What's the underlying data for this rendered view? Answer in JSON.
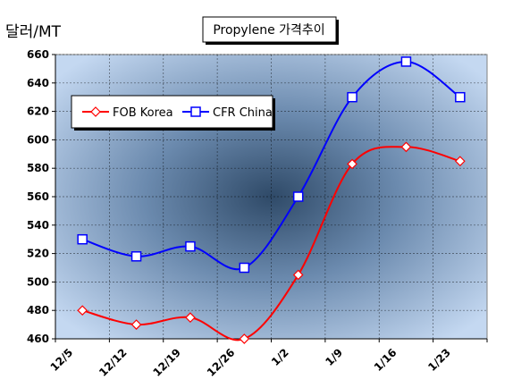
{
  "chart_data": {
    "type": "line",
    "title": "Propylene 가격추이",
    "ylabel": "달러/MT",
    "xlabel": "",
    "categories": [
      "12/5",
      "12/12",
      "12/19",
      "12/26",
      "1/2",
      "1/9",
      "1/16",
      "1/23"
    ],
    "ylim": [
      460,
      660
    ],
    "yticks": [
      460,
      480,
      500,
      520,
      540,
      560,
      580,
      600,
      620,
      640,
      660
    ],
    "grid": true,
    "legend_position": "top-left",
    "series": [
      {
        "name": "FOB Korea",
        "color": "#ff0000",
        "marker": "diamond",
        "values": [
          480,
          470,
          475,
          460,
          505,
          583,
          595,
          585
        ]
      },
      {
        "name": "CFR China",
        "color": "#0000ff",
        "marker": "square",
        "values": [
          530,
          518,
          525,
          510,
          560,
          630,
          655,
          630
        ]
      }
    ]
  }
}
